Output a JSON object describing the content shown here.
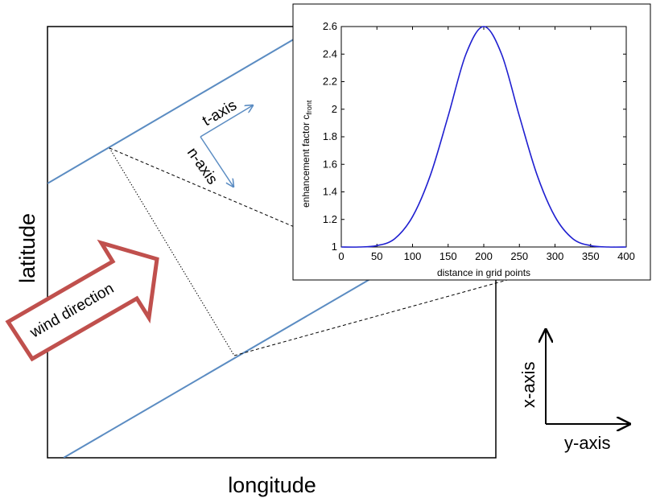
{
  "diagram": {
    "latitude_label": "latitude",
    "longitude_label": "longitude",
    "wind_label": "wind direction",
    "t_axis_label": "t-axis",
    "n_axis_label": "n-axis",
    "x_axis_label": "x-axis",
    "y_axis_label": "y-axis",
    "colors": {
      "front_line": "#5b8cc2",
      "arrow_outline": "#c0504d",
      "curve": "#1f1fd0"
    }
  },
  "chart_data": {
    "type": "line",
    "title": "",
    "xlabel": "distance in grid points",
    "ylabel_main": "enhancement factor c",
    "ylabel_sub": "front",
    "xlim": [
      0,
      400
    ],
    "ylim": [
      1,
      2.6
    ],
    "xticks": [
      0,
      50,
      100,
      150,
      200,
      250,
      300,
      350,
      400
    ],
    "yticks": [
      1,
      1.2,
      1.4,
      1.6,
      1.8,
      2,
      2.2,
      2.4,
      2.6
    ],
    "ytick_labels": [
      "1",
      "1.2",
      "1.4",
      "1.6",
      "1.8",
      "2",
      "2.2",
      "2.4",
      "2.6"
    ],
    "grid": false,
    "series": [
      {
        "x": [
          0,
          25,
          50,
          75,
          100,
          125,
          150,
          175,
          200,
          225,
          250,
          275,
          300,
          325,
          350,
          375,
          400
        ],
        "values": [
          1.0,
          1.0,
          1.01,
          1.06,
          1.22,
          1.52,
          1.95,
          2.4,
          2.6,
          2.4,
          1.95,
          1.52,
          1.22,
          1.06,
          1.01,
          1.0,
          1.0
        ]
      }
    ]
  }
}
